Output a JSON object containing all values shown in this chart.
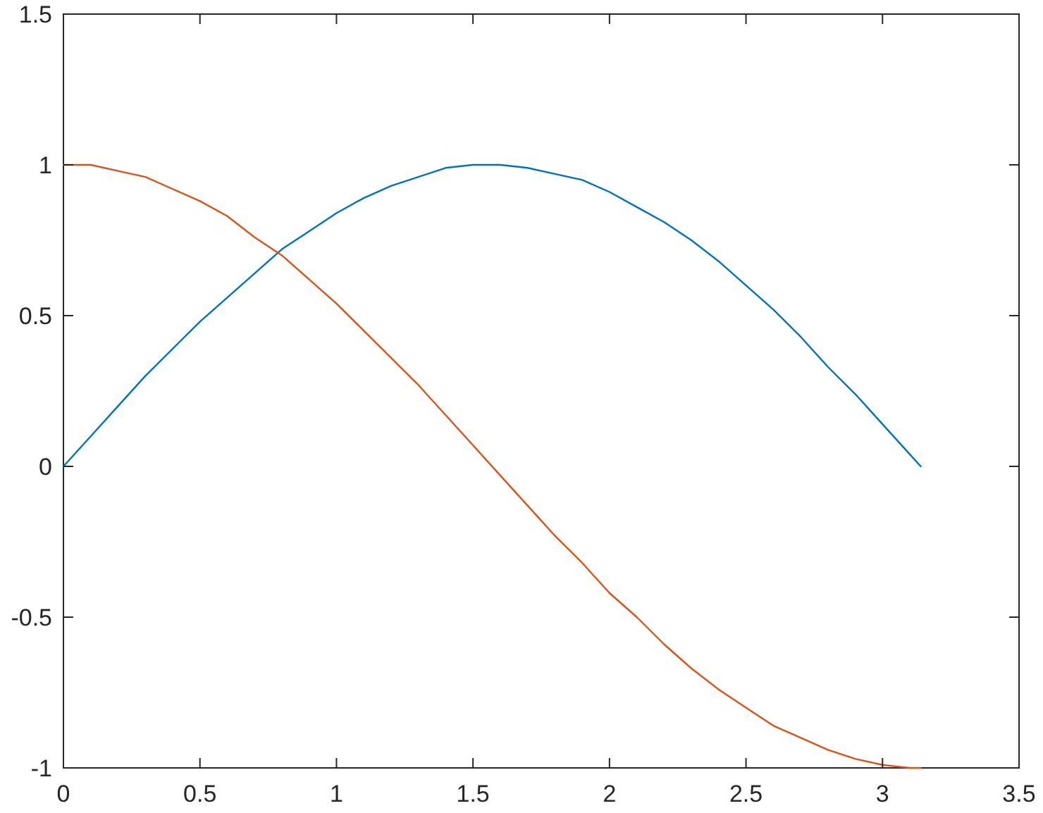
{
  "chart_data": {
    "type": "line",
    "x": [
      0,
      0.1,
      0.2,
      0.3,
      0.4,
      0.5,
      0.6,
      0.7,
      0.8,
      0.9,
      1.0,
      1.1,
      1.2,
      1.3,
      1.4,
      1.5,
      1.6,
      1.7,
      1.8,
      1.9,
      2.0,
      2.1,
      2.2,
      2.3,
      2.4,
      2.5,
      2.6,
      2.7,
      2.8,
      2.9,
      3.0,
      3.1,
      3.14
    ],
    "series": [
      {
        "color": "#0072bd",
        "values": [
          0,
          0.1,
          0.2,
          0.3,
          0.39,
          0.48,
          0.56,
          0.64,
          0.72,
          0.78,
          0.84,
          0.89,
          0.93,
          0.96,
          0.99,
          1.0,
          1.0,
          0.99,
          0.97,
          0.95,
          0.91,
          0.86,
          0.81,
          0.75,
          0.68,
          0.6,
          0.52,
          0.43,
          0.33,
          0.24,
          0.14,
          0.04,
          0.0
        ]
      },
      {
        "color": "#d95319",
        "values": [
          1.0,
          1.0,
          0.98,
          0.96,
          0.92,
          0.88,
          0.83,
          0.76,
          0.7,
          0.62,
          0.54,
          0.45,
          0.36,
          0.27,
          0.17,
          0.07,
          -0.03,
          -0.13,
          -0.23,
          -0.32,
          -0.42,
          -0.5,
          -0.59,
          -0.67,
          -0.74,
          -0.8,
          -0.86,
          -0.9,
          -0.94,
          -0.97,
          -0.99,
          -1.0,
          -1.0
        ]
      }
    ],
    "xlim": [
      0,
      3.5
    ],
    "xticks": [
      0,
      0.5,
      1,
      1.5,
      2,
      2.5,
      3,
      3.5
    ],
    "ylim": [
      -1,
      1.5
    ],
    "yticks": [
      -1,
      -0.5,
      0,
      0.5,
      1,
      1.5
    ]
  }
}
